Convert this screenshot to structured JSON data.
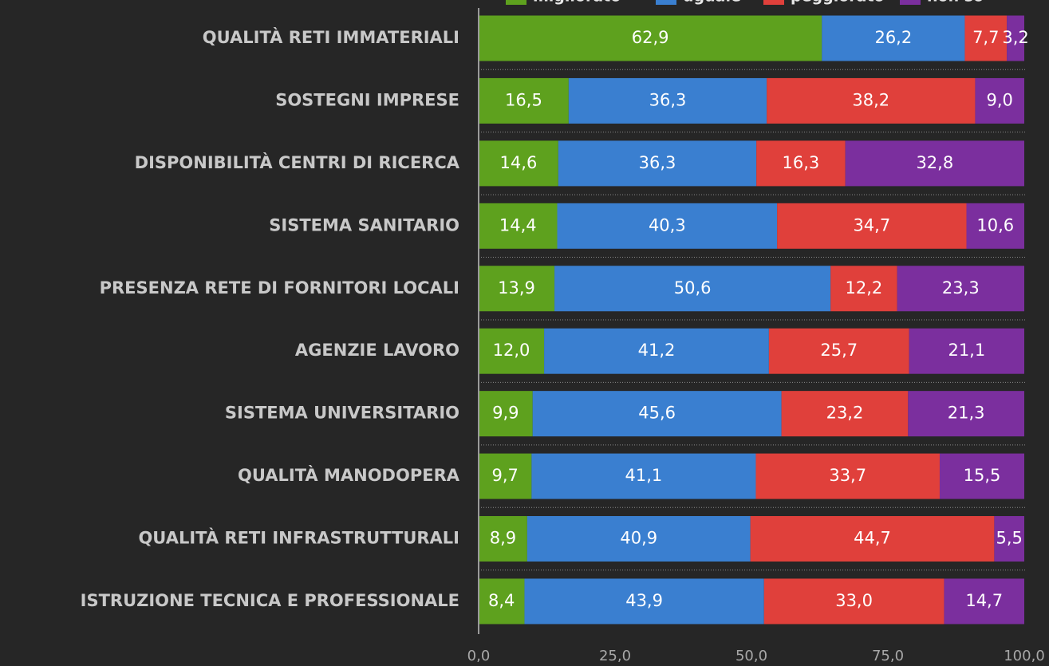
{
  "chart_data": {
    "type": "stacked-bar-horizontal",
    "categories": [
      "QUALITÀ RETI IMMATERIALI",
      "SOSTEGNI IMPRESE",
      "DISPONIBILITÀ CENTRI DI RICERCA",
      "SISTEMA SANITARIO",
      "PRESENZA RETE DI FORNITORI LOCALI",
      "AGENZIE LAVORO",
      "SISTEMA UNIVERSITARIO",
      "QUALITÀ MANODOPERA",
      "QUALITÀ RETI INFRASTRUTTURALI",
      "ISTRUZIONE TECNICA E PROFESSIONALE"
    ],
    "series": [
      {
        "name": "migliorato",
        "color": "#5ea11e",
        "values": [
          62.9,
          16.5,
          14.6,
          14.4,
          13.9,
          12.0,
          9.9,
          9.7,
          8.9,
          8.4
        ],
        "value_labels": [
          "62,9",
          "16,5",
          "14,6",
          "14,4",
          "13,9",
          "12,0",
          "9,9",
          "9,7",
          "8,9",
          "8,4"
        ]
      },
      {
        "name": "uguale",
        "color": "#3a7fd0",
        "values": [
          26.2,
          36.3,
          36.3,
          40.3,
          50.6,
          41.2,
          45.6,
          41.1,
          40.9,
          43.9
        ],
        "value_labels": [
          "26,2",
          "36,3",
          "36,3",
          "40,3",
          "50,6",
          "41,2",
          "45,6",
          "41,1",
          "40,9",
          "43,9"
        ]
      },
      {
        "name": "peggiorato",
        "color": "#e0403b",
        "values": [
          7.7,
          38.2,
          16.3,
          34.7,
          12.2,
          25.7,
          23.2,
          33.7,
          44.7,
          33.0
        ],
        "value_labels": [
          "7,7",
          "38,2",
          "16,3",
          "34,7",
          "12,2",
          "25,7",
          "23,2",
          "33,7",
          "44,7",
          "33,0"
        ]
      },
      {
        "name": "non so",
        "color": "#7b2f9e",
        "values": [
          3.2,
          9.0,
          32.8,
          10.6,
          23.3,
          21.1,
          21.3,
          15.5,
          5.5,
          14.7
        ],
        "value_labels": [
          "3,2",
          "9,0",
          "32,8",
          "10,6",
          "23,3",
          "21,1",
          "21,3",
          "15,5",
          "5,5",
          "14,7"
        ]
      }
    ],
    "xlim": [
      0,
      100
    ],
    "xticks": [
      {
        "value": 0,
        "label": "0,0"
      },
      {
        "value": 25,
        "label": "25,0"
      },
      {
        "value": 50,
        "label": "50,0"
      },
      {
        "value": 75,
        "label": "75,0"
      },
      {
        "value": 100,
        "label": "100,0"
      }
    ],
    "legend": "top"
  }
}
